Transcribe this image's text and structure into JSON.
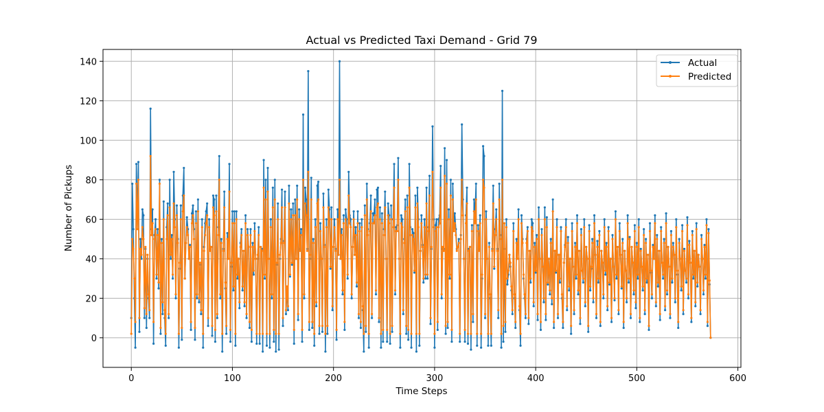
{
  "chart_data": {
    "type": "line",
    "title": "Actual vs Predicted Taxi Demand - Grid 79",
    "xlabel": "Time Steps",
    "ylabel": "Number of Pickups",
    "xlim": [
      -28,
      603
    ],
    "ylim": [
      -15,
      146
    ],
    "xticks": [
      0,
      100,
      200,
      300,
      400,
      500,
      600
    ],
    "yticks": [
      0,
      20,
      40,
      60,
      80,
      100,
      120,
      140
    ],
    "grid": true,
    "legend_position": "top-right",
    "x_count": 574,
    "series": [
      {
        "name": "Actual",
        "color": "#1f77b4",
        "values": [
          10,
          78,
          55,
          20,
          -5,
          88,
          60,
          89,
          3,
          50,
          40,
          65,
          62,
          10,
          45,
          5,
          40,
          20,
          10,
          116,
          55,
          65,
          -3,
          52,
          60,
          30,
          55,
          25,
          80,
          2,
          50,
          12,
          69,
          10,
          -4,
          56,
          68,
          10,
          80,
          40,
          52,
          30,
          84,
          60,
          20,
          67,
          50,
          -5,
          35,
          67,
          -1,
          72,
          86,
          30,
          48,
          61,
          55,
          40,
          47,
          4,
          63,
          67,
          55,
          -1,
          64,
          20,
          70,
          18,
          37,
          12,
          60,
          -5,
          46,
          58,
          64,
          68,
          6,
          60,
          45,
          46,
          1,
          72,
          70,
          -2,
          72,
          10,
          56,
          92,
          20,
          50,
          -7,
          45,
          74,
          25,
          2,
          53,
          40,
          88,
          -2,
          36,
          64,
          24,
          64,
          -4,
          64,
          30,
          40,
          15,
          48,
          55,
          24,
          44,
          16,
          62,
          10,
          55,
          46,
          5,
          55,
          -2,
          48,
          32,
          58,
          40,
          -3,
          40,
          56,
          -3,
          46,
          45,
          -7,
          90,
          30,
          80,
          -4,
          86,
          40,
          -5,
          60,
          20,
          76,
          -2,
          80,
          -7,
          37,
          68,
          -6,
          40,
          50,
          75,
          6,
          49,
          74,
          12,
          24,
          14,
          77,
          31,
          65,
          37,
          68,
          -3,
          70,
          40,
          77,
          9,
          65,
          45,
          55,
          -2,
          113,
          20,
          76,
          70,
          45,
          135,
          4,
          40,
          81,
          5,
          50,
          -4,
          60,
          16,
          77,
          79,
          2,
          58,
          40,
          3,
          73,
          47,
          -7,
          60,
          2,
          75,
          65,
          35,
          66,
          14,
          46,
          60,
          45,
          -1,
          65,
          42,
          140,
          40,
          55,
          22,
          62,
          4,
          65,
          60,
          30,
          84,
          62,
          60,
          20,
          46,
          64,
          42,
          56,
          26,
          64,
          10,
          58,
          5,
          60,
          14,
          -7,
          67,
          3,
          78,
          55,
          -5,
          58,
          72,
          10,
          63,
          62,
          70,
          22,
          75,
          76,
          8,
          66,
          -5,
          63,
          -2,
          55,
          74,
          40,
          -2,
          68,
          62,
          -3,
          67,
          3,
          60,
          88,
          22,
          56,
          57,
          91,
          40,
          -5,
          62,
          60,
          12,
          50,
          70,
          2,
          72,
          -1,
          88,
          56,
          -5,
          55,
          53,
          33,
          72,
          -7,
          76,
          60,
          -4,
          44,
          62,
          47,
          28,
          60,
          30,
          76,
          30,
          56,
          82,
          7,
          45,
          107,
          60,
          -5,
          57,
          60,
          4,
          60,
          62,
          87,
          20,
          45,
          45,
          96,
          2,
          90,
          5,
          65,
          30,
          80,
          -2,
          78,
          56,
          63,
          55,
          45,
          46,
          50,
          -2,
          52,
          108,
          70,
          40,
          -2,
          62,
          76,
          -3,
          45,
          46,
          -6,
          57,
          8,
          70,
          63,
          78,
          -4,
          57,
          45,
          62,
          -5,
          30,
          97,
          92,
          10,
          64,
          40,
          -4,
          48,
          20,
          -4,
          45,
          77,
          35,
          55,
          65,
          45,
          10,
          78,
          52,
          -5,
          125,
          -2,
          45,
          3,
          60,
          27,
          32,
          42,
          36,
          24,
          12,
          58,
          20,
          5,
          50,
          40,
          65,
          14,
          -4,
          62,
          50,
          30,
          20,
          10,
          50,
          56,
          7,
          44,
          28,
          60,
          58,
          16,
          48,
          33,
          52,
          9,
          66,
          40,
          4,
          55,
          36,
          18,
          66,
          9,
          61,
          27,
          40,
          22,
          50,
          17,
          70,
          5,
          44,
          33,
          60,
          10,
          42,
          28,
          56,
          20,
          5,
          38,
          47,
          60,
          14,
          51,
          24,
          40,
          2,
          58,
          36,
          12,
          48,
          30,
          62,
          22,
          44,
          7,
          55,
          34,
          28,
          60,
          16,
          46,
          40,
          3,
          57,
          24,
          35,
          50,
          18,
          62,
          42,
          10,
          49,
          28,
          54,
          6,
          44,
          38,
          20,
          60,
          32,
          48,
          14,
          56,
          27,
          40,
          8,
          52,
          36,
          19,
          64,
          30,
          46,
          12,
          58,
          42,
          25,
          50,
          5,
          44,
          34,
          18,
          62,
          28,
          51,
          10,
          46,
          38,
          22,
          57,
          15,
          48,
          30,
          60,
          8,
          45,
          36,
          24,
          55,
          12,
          50,
          28,
          42,
          4,
          58,
          33,
          20,
          47,
          40,
          62,
          16,
          52,
          26,
          44,
          9,
          56,
          38,
          30,
          50,
          14,
          63,
          22,
          46,
          36,
          10,
          54,
          28,
          48,
          42,
          18,
          60,
          32,
          5,
          50,
          40,
          24,
          57,
          12,
          45,
          34,
          28,
          61,
          20,
          49,
          38,
          8,
          54,
          30,
          44,
          16,
          58,
          26,
          42,
          36,
          12,
          52,
          40,
          22,
          47,
          30,
          60,
          6,
          55,
          27,
          0,
          27
        ]
      },
      {
        "name": "Predicted",
        "color": "#ff7f0e",
        "values": [
          2,
          50,
          45,
          30,
          8,
          78,
          55,
          80,
          10,
          45,
          42,
          56,
          50,
          15,
          46,
          12,
          42,
          22,
          14,
          92,
          52,
          58,
          8,
          50,
          55,
          32,
          52,
          28,
          78,
          5,
          48,
          18,
          60,
          14,
          2,
          50,
          62,
          12,
          66,
          42,
          50,
          32,
          68,
          56,
          22,
          62,
          48,
          2,
          38,
          60,
          5,
          64,
          72,
          30,
          48,
          56,
          52,
          40,
          46,
          8,
          58,
          62,
          50,
          5,
          58,
          22,
          64,
          20,
          38,
          14,
          56,
          2,
          44,
          52,
          58,
          62,
          10,
          56,
          44,
          46,
          6,
          66,
          62,
          4,
          64,
          12,
          52,
          80,
          22,
          48,
          2,
          44,
          66,
          28,
          6,
          50,
          40,
          74,
          4,
          38,
          58,
          26,
          58,
          2,
          60,
          32,
          40,
          18,
          46,
          52,
          26,
          44,
          18,
          58,
          12,
          52,
          46,
          8,
          52,
          4,
          46,
          34,
          54,
          40,
          2,
          42,
          52,
          2,
          46,
          44,
          2,
          76,
          32,
          70,
          2,
          74,
          40,
          2,
          56,
          22,
          66,
          4,
          70,
          2,
          38,
          60,
          2,
          42,
          48,
          66,
          10,
          48,
          66,
          14,
          26,
          16,
          68,
          32,
          60,
          38,
          62,
          4,
          62,
          40,
          70,
          12,
          60,
          44,
          52,
          4,
          80,
          22,
          68,
          62,
          44,
          84,
          8,
          42,
          70,
          8,
          48,
          2,
          56,
          18,
          68,
          70,
          6,
          54,
          40,
          6,
          66,
          46,
          2,
          56,
          6,
          66,
          60,
          36,
          60,
          16,
          46,
          56,
          44,
          4,
          60,
          42,
          80,
          40,
          52,
          24,
          58,
          8,
          60,
          56,
          32,
          72,
          58,
          56,
          22,
          46,
          60,
          42,
          52,
          28,
          58,
          12,
          54,
          8,
          56,
          16,
          2,
          62,
          6,
          70,
          52,
          2,
          54,
          64,
          12,
          58,
          58,
          62,
          24,
          66,
          68,
          10,
          60,
          2,
          58,
          4,
          52,
          66,
          40,
          4,
          62,
          58,
          2,
          60,
          6,
          56,
          76,
          24,
          54,
          54,
          80,
          40,
          2,
          58,
          56,
          14,
          48,
          64,
          6,
          66,
          4,
          76,
          52,
          2,
          52,
          50,
          34,
          66,
          2,
          68,
          56,
          2,
          44,
          58,
          46,
          30,
          56,
          32,
          68,
          32,
          54,
          72,
          10,
          46,
          84,
          56,
          2,
          54,
          56,
          8,
          56,
          58,
          76,
          22,
          46,
          44,
          82,
          6,
          78,
          8,
          60,
          32,
          72,
          4,
          70,
          54,
          58,
          52,
          44,
          46,
          48,
          2,
          50,
          80,
          62,
          40,
          4,
          58,
          68,
          2,
          44,
          46,
          2,
          54,
          12,
          64,
          58,
          70,
          2,
          54,
          44,
          58,
          2,
          32,
          80,
          76,
          12,
          60,
          40,
          2,
          46,
          22,
          2,
          44,
          68,
          36,
          52,
          60,
          44,
          14,
          70,
          50,
          2,
          80,
          6,
          58,
          8,
          56,
          30,
          34,
          42,
          38,
          26,
          14,
          54,
          22,
          8,
          48,
          40,
          60,
          16,
          2,
          58,
          48,
          32,
          22,
          12,
          48,
          54,
          10,
          44,
          30,
          56,
          54,
          18,
          46,
          34,
          50,
          12,
          60,
          40,
          8,
          52,
          36,
          20,
          60,
          12,
          56,
          28,
          40,
          24,
          48,
          20,
          64,
          8,
          44,
          34,
          56,
          12,
          42,
          30,
          54,
          22,
          8,
          38,
          46,
          56,
          16,
          48,
          26,
          40,
          6,
          54,
          36,
          14,
          46,
          32,
          58,
          24,
          44,
          10,
          52,
          34,
          30,
          56,
          18,
          46,
          40,
          6,
          54,
          26,
          36,
          48,
          20,
          58,
          42,
          12,
          46,
          30,
          52,
          8,
          44,
          38,
          22,
          56,
          34,
          46,
          16,
          54,
          28,
          40,
          10,
          50,
          36,
          20,
          60,
          32,
          46,
          14,
          54,
          42,
          26,
          48,
          8,
          44,
          34,
          20,
          58,
          30,
          50,
          12,
          46,
          38,
          24,
          54,
          18,
          46,
          32,
          56,
          10,
          44,
          36,
          26,
          52,
          14,
          48,
          30,
          42,
          6,
          54,
          34,
          22,
          46,
          40,
          58,
          18,
          50,
          28,
          44,
          12,
          54,
          38,
          32,
          48,
          16,
          58,
          24,
          46,
          36,
          12,
          52,
          30,
          46,
          42,
          20,
          56,
          34,
          8,
          48,
          40,
          26,
          54,
          14,
          44,
          34,
          30,
          57,
          22,
          47,
          38,
          10,
          52,
          32,
          44,
          18,
          55,
          28,
          42,
          36,
          14,
          50,
          40,
          24,
          46,
          32,
          57,
          8,
          53,
          29,
          0,
          47
        ]
      }
    ]
  }
}
